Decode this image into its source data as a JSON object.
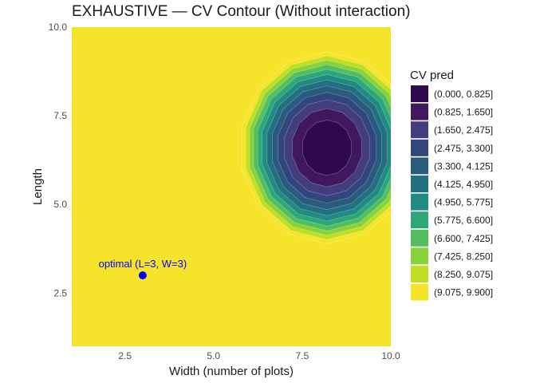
{
  "chart_data": {
    "type": "contour",
    "title": "EXHAUSTIVE — CV Contour (Without interaction)",
    "xlabel": "Width (number of plots)",
    "ylabel": "Length",
    "xlim": [
      1,
      10
    ],
    "ylim": [
      1,
      10
    ],
    "x_ticks": [
      2.5,
      5.0,
      7.5,
      10.0
    ],
    "y_ticks": [
      2.5,
      5.0,
      7.5,
      10.0
    ],
    "x_tick_labels": [
      "2.5",
      "5.0",
      "7.5",
      "10.0"
    ],
    "y_tick_labels": [
      "2.5",
      "5.0",
      "7.5",
      "10.0"
    ],
    "grid": false,
    "legend": {
      "title": "CV pred",
      "position": "right",
      "bins": [
        {
          "label": "(0.000, 0.825]",
          "color": "#2d0a4e"
        },
        {
          "label": "(0.825, 1.650]",
          "color": "#41185f"
        },
        {
          "label": "(1.650, 2.475]",
          "color": "#433c7e"
        },
        {
          "label": "(2.475, 3.300]",
          "color": "#31467a"
        },
        {
          "label": "(3.300, 4.125]",
          "color": "#285b7e"
        },
        {
          "label": "(4.125, 4.950]",
          "color": "#216f80"
        },
        {
          "label": "(4.950, 5.775]",
          "color": "#1f8b82"
        },
        {
          "label": "(5.775, 6.600]",
          "color": "#2ea778"
        },
        {
          "label": "(6.600, 7.425]",
          "color": "#52be5f"
        },
        {
          "label": "(7.425, 8.250]",
          "color": "#89d23c"
        },
        {
          "label": "(8.250, 9.075]",
          "color": "#bfdf23"
        },
        {
          "label": "(9.075, 9.900]",
          "color": "#f6e42a"
        }
      ]
    },
    "surface": {
      "min_at": {
        "x": 8.2,
        "y": 6.6
      },
      "x_scale": 0.78,
      "y_scale": 0.86,
      "min_value": 0.0,
      "max_value": 9.9
    },
    "annotation": {
      "label": "optimal (L=3, W=3)",
      "x": 3,
      "y": 3,
      "color": "#0000ff"
    }
  }
}
